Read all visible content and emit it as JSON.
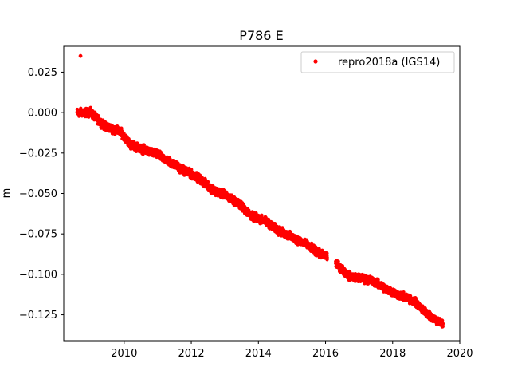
{
  "chart_data": {
    "type": "scatter",
    "title": "P786 E",
    "xlabel": "",
    "ylabel": "m",
    "xlim": [
      2008.2,
      2020.0
    ],
    "ylim": [
      -0.141,
      0.041
    ],
    "x_ticks": [
      2010,
      2012,
      2014,
      2016,
      2018,
      2020
    ],
    "y_ticks": [
      0.025,
      0.0,
      -0.025,
      -0.05,
      -0.075,
      -0.1,
      -0.125
    ],
    "x_tick_labels": [
      "2010",
      "2012",
      "2014",
      "2016",
      "2018",
      "2020"
    ],
    "y_tick_labels": [
      "0.025",
      "0.000",
      "−0.025",
      "−0.050",
      "−0.075",
      "−0.100",
      "−0.125"
    ],
    "grid": false,
    "legend_position": "top-right",
    "series": [
      {
        "name": "repro2018a (IGS14)",
        "color": "#ff0000",
        "marker": "dot",
        "outlier": {
          "x": 2008.7,
          "y": 0.035
        },
        "x_range": [
          2008.6,
          2019.5
        ],
        "gap": [
          2016.05,
          2016.3
        ],
        "trend": [
          [
            2008.6,
            0.0
          ],
          [
            2009.0,
            0.0
          ],
          [
            2009.4,
            -0.008
          ],
          [
            2009.9,
            -0.012
          ],
          [
            2010.2,
            -0.02
          ],
          [
            2010.6,
            -0.023
          ],
          [
            2011.0,
            -0.026
          ],
          [
            2011.4,
            -0.031
          ],
          [
            2011.8,
            -0.036
          ],
          [
            2012.2,
            -0.04
          ],
          [
            2012.6,
            -0.047
          ],
          [
            2013.0,
            -0.051
          ],
          [
            2013.4,
            -0.056
          ],
          [
            2013.8,
            -0.064
          ],
          [
            2014.2,
            -0.067
          ],
          [
            2014.6,
            -0.073
          ],
          [
            2015.0,
            -0.077
          ],
          [
            2015.4,
            -0.081
          ],
          [
            2015.8,
            -0.087
          ],
          [
            2016.05,
            -0.089
          ],
          [
            2016.3,
            -0.093
          ],
          [
            2016.7,
            -0.101
          ],
          [
            2017.0,
            -0.102
          ],
          [
            2017.4,
            -0.104
          ],
          [
            2017.8,
            -0.109
          ],
          [
            2018.2,
            -0.113
          ],
          [
            2018.6,
            -0.116
          ],
          [
            2019.0,
            -0.124
          ],
          [
            2019.5,
            -0.131
          ]
        ],
        "scatter_amplitude": 0.0035
      }
    ]
  }
}
